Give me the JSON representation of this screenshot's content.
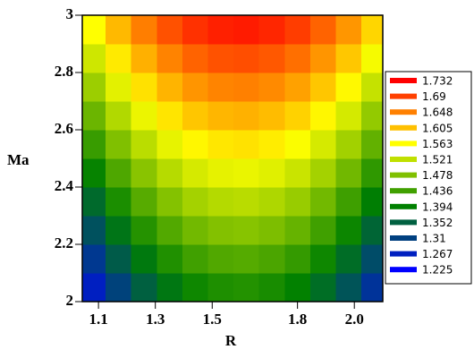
{
  "chart_data": {
    "type": "heatmap",
    "x_label": "R",
    "y_label": "Ma",
    "x": [
      1.08,
      1.17,
      1.26,
      1.35,
      1.44,
      1.53,
      1.62,
      1.71,
      1.8,
      1.89,
      1.98,
      2.07
    ],
    "y": [
      2.05,
      2.15,
      2.25,
      2.35,
      2.45,
      2.55,
      2.65,
      2.75,
      2.85,
      2.95
    ],
    "z": [
      [
        1.266,
        1.313,
        1.352,
        1.382,
        1.403,
        1.414,
        1.417,
        1.41,
        1.395,
        1.37,
        1.336,
        1.293
      ],
      [
        1.299,
        1.346,
        1.385,
        1.415,
        1.436,
        1.447,
        1.45,
        1.443,
        1.428,
        1.403,
        1.369,
        1.326
      ],
      [
        1.332,
        1.379,
        1.418,
        1.448,
        1.469,
        1.48,
        1.483,
        1.476,
        1.461,
        1.436,
        1.402,
        1.359
      ],
      [
        1.365,
        1.412,
        1.451,
        1.481,
        1.502,
        1.513,
        1.516,
        1.509,
        1.494,
        1.469,
        1.435,
        1.392
      ],
      [
        1.398,
        1.445,
        1.484,
        1.514,
        1.535,
        1.546,
        1.549,
        1.542,
        1.527,
        1.502,
        1.468,
        1.425
      ],
      [
        1.431,
        1.478,
        1.517,
        1.547,
        1.568,
        1.579,
        1.582,
        1.575,
        1.56,
        1.535,
        1.501,
        1.458
      ],
      [
        1.464,
        1.511,
        1.55,
        1.58,
        1.601,
        1.612,
        1.615,
        1.608,
        1.593,
        1.568,
        1.534,
        1.491
      ],
      [
        1.497,
        1.544,
        1.583,
        1.613,
        1.634,
        1.645,
        1.648,
        1.641,
        1.626,
        1.601,
        1.567,
        1.524
      ],
      [
        1.53,
        1.577,
        1.616,
        1.646,
        1.667,
        1.678,
        1.681,
        1.674,
        1.659,
        1.634,
        1.6,
        1.557
      ],
      [
        1.563,
        1.61,
        1.649,
        1.679,
        1.7,
        1.711,
        1.714,
        1.707,
        1.692,
        1.667,
        1.633,
        1.59
      ]
    ],
    "xlim": [
      1.043,
      2.1
    ],
    "ylim": [
      2,
      3
    ],
    "xticks": [
      1.1,
      1.3,
      1.5,
      1.8,
      {
        "value": 2,
        "label": "2.0"
      }
    ],
    "yticks": [
      2,
      2.2,
      2.4,
      2.6,
      2.8,
      3
    ],
    "levels": [
      1.732,
      1.69,
      1.648,
      1.605,
      1.563,
      1.521,
      1.478,
      1.436,
      1.394,
      1.352,
      1.31,
      1.267,
      1.225
    ],
    "colors": [
      "#ff0000",
      "#ff4000",
      "#ff8000",
      "#ffc000",
      "#ffff00",
      "#c0e000",
      "#80c000",
      "#40a000",
      "#008000",
      "#006040",
      "#004080",
      "#0020c0",
      "#0000ff"
    ]
  }
}
